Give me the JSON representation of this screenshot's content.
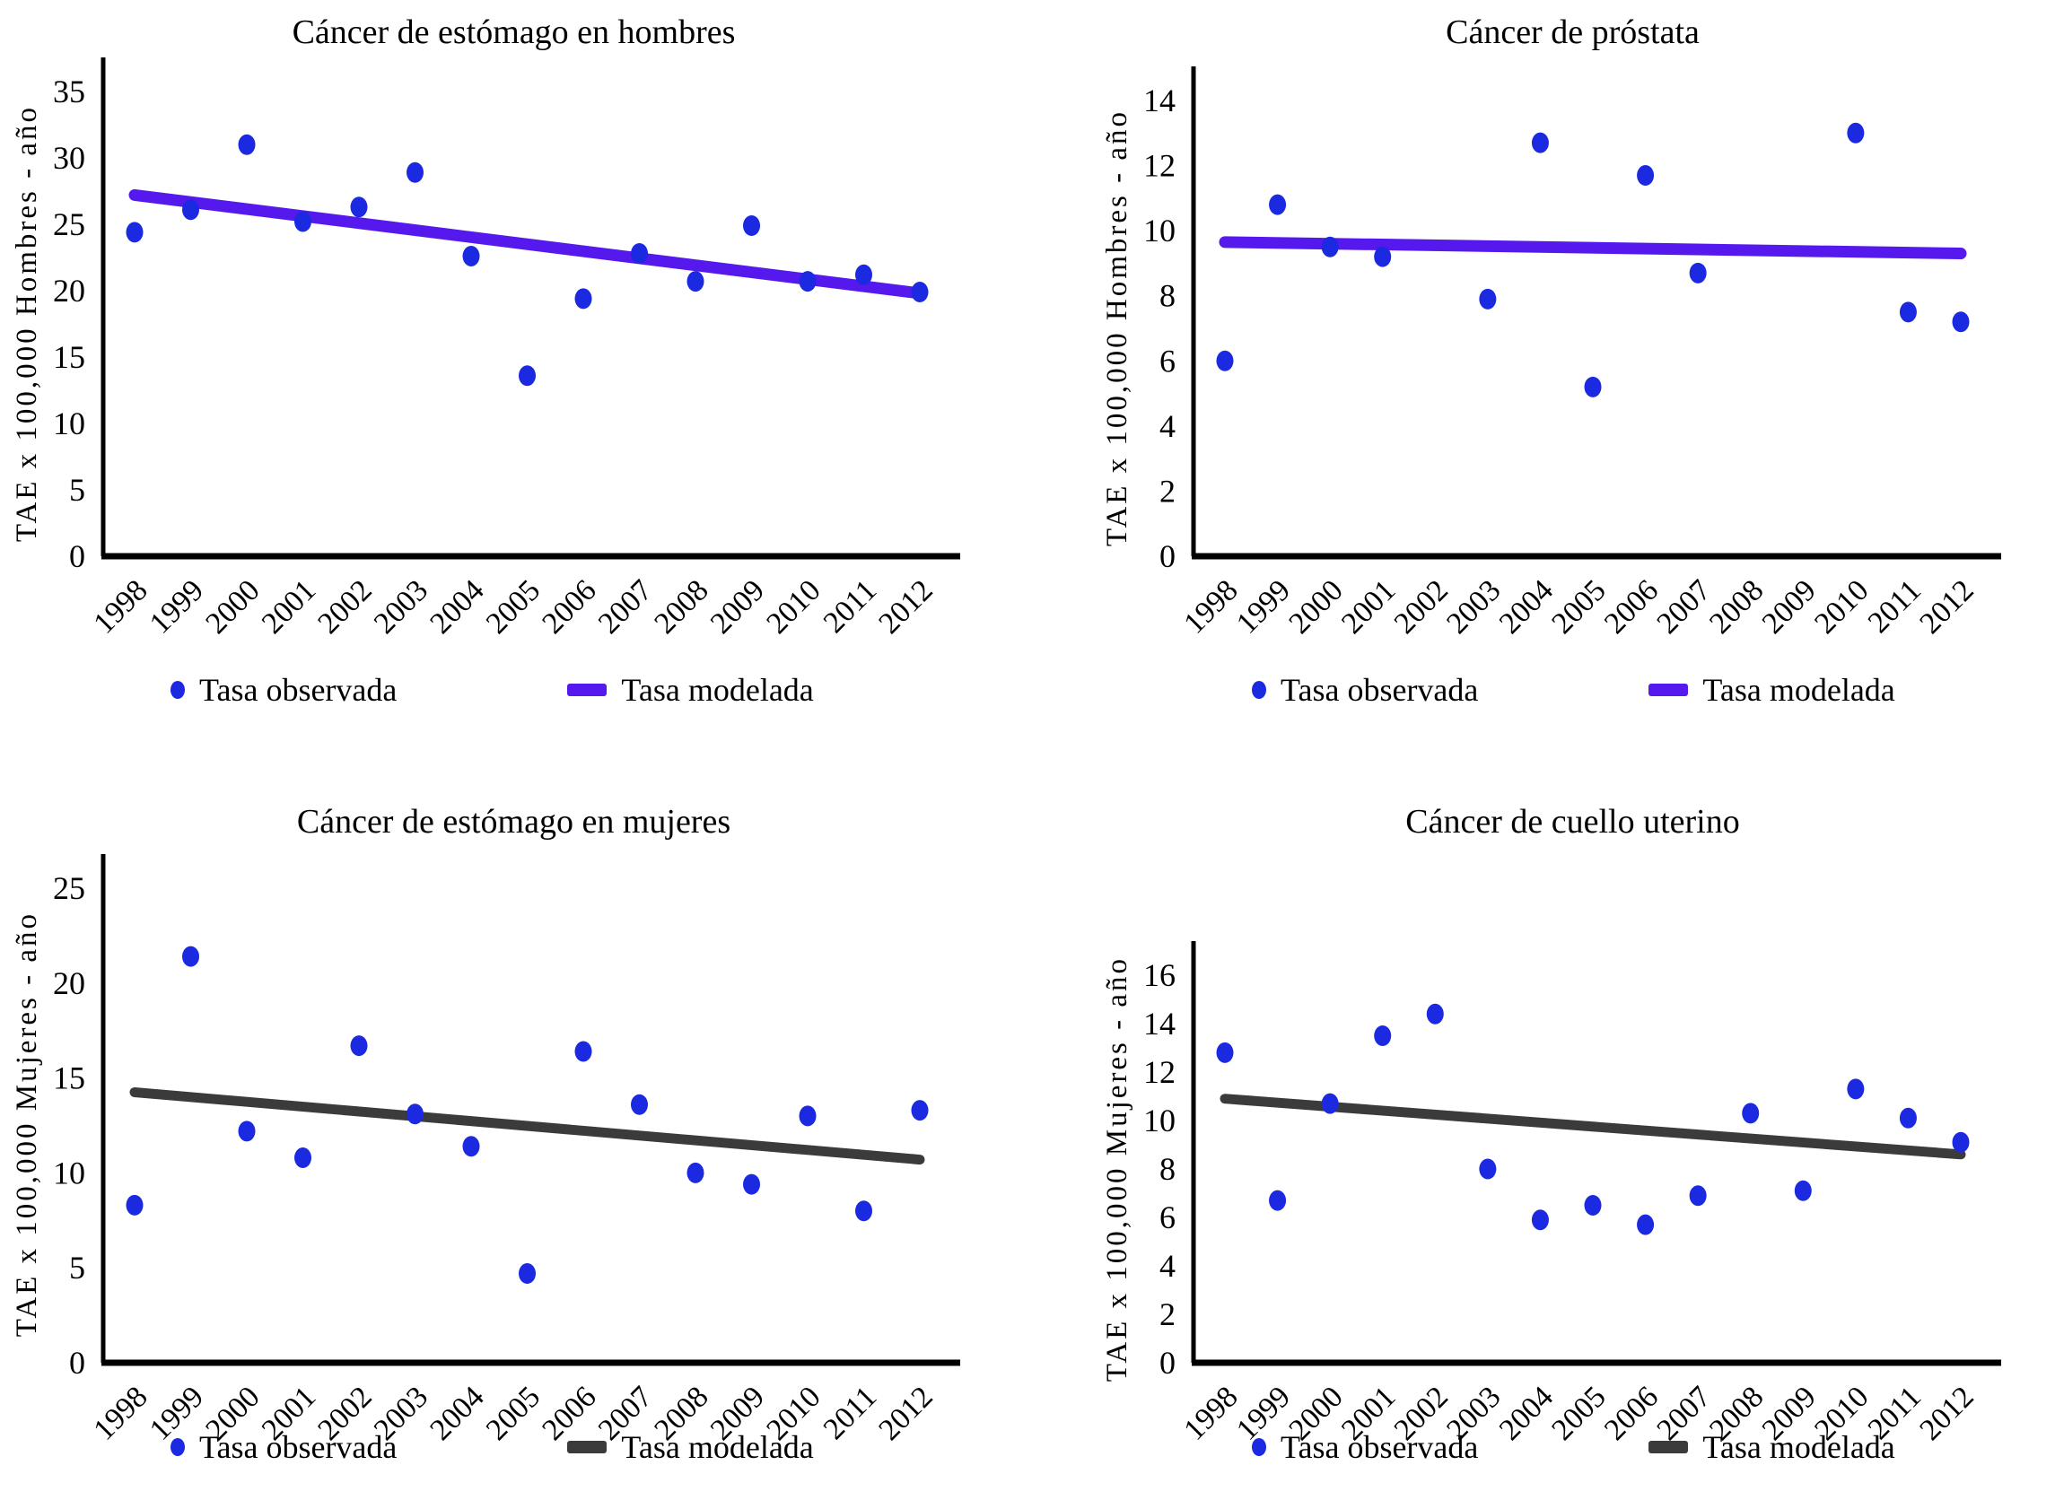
{
  "figure": {
    "background": "#ffffff"
  },
  "chart_data": [
    {
      "type": "scatter",
      "title": "Cáncer de estómago en hombres",
      "ylabel": "TAE x 100,000 Hombres - año",
      "xlabel": "",
      "x": [
        "1998",
        "1999",
        "2000",
        "2001",
        "2002",
        "2003",
        "2004",
        "2005",
        "2006",
        "2007",
        "2008",
        "2009",
        "2010",
        "2011",
        "2012"
      ],
      "ylim": [
        0,
        35
      ],
      "ytick_step": 5,
      "yticks": [
        0,
        5,
        10,
        15,
        20,
        25,
        30,
        35
      ],
      "grid": false,
      "legend_position": "bottom",
      "series": [
        {
          "name": "Tasa observada",
          "type": "scatter",
          "color": "#1b2ae0",
          "values": [
            24.4,
            26.1,
            31.0,
            25.2,
            26.3,
            28.9,
            22.6,
            13.6,
            19.4,
            22.8,
            20.7,
            24.9,
            20.7,
            21.2,
            19.9
          ]
        },
        {
          "name": "Tasa modelada",
          "type": "line",
          "color": "#5519ee",
          "trend_start": 27.2,
          "trend_end": 19.8
        }
      ]
    },
    {
      "type": "scatter",
      "title": "Cáncer de próstata",
      "ylabel": "TAE x 100,000 Hombres - año",
      "xlabel": "",
      "x": [
        "1998",
        "1999",
        "2000",
        "2001",
        "2002",
        "2003",
        "2004",
        "2005",
        "2006",
        "2007",
        "2008",
        "2009",
        "2010",
        "2011",
        "2012"
      ],
      "ylim": [
        0,
        14
      ],
      "ytick_step": 2,
      "yticks": [
        0,
        2,
        4,
        6,
        8,
        10,
        12,
        14
      ],
      "grid": false,
      "legend_position": "bottom",
      "series": [
        {
          "name": "Tasa observada",
          "type": "scatter",
          "color": "#1b2ae0",
          "values": [
            6.0,
            10.8,
            9.5,
            9.2,
            null,
            7.9,
            12.7,
            5.2,
            11.7,
            8.7,
            null,
            null,
            13.0,
            7.5,
            7.2
          ]
        },
        {
          "name": "Tasa modelada",
          "type": "line",
          "color": "#5519ee",
          "trend_start": 9.65,
          "trend_end": 9.3
        }
      ]
    },
    {
      "type": "scatter",
      "title": "Cáncer de estómago en mujeres",
      "ylabel": "TAE x 100,000 Mujeres - año",
      "xlabel": "",
      "x": [
        "1998",
        "1999",
        "2000",
        "2001",
        "2002",
        "2003",
        "2004",
        "2005",
        "2006",
        "2007",
        "2008",
        "2009",
        "2010",
        "2011",
        "2012"
      ],
      "ylim": [
        0,
        25
      ],
      "ytick_step": 5,
      "yticks": [
        0,
        5,
        10,
        15,
        20,
        25
      ],
      "grid": false,
      "legend_position": "bottom",
      "series": [
        {
          "name": "Tasa observada",
          "type": "scatter",
          "color": "#1b2ae0",
          "values": [
            8.3,
            21.4,
            12.2,
            10.8,
            16.7,
            13.1,
            11.4,
            4.7,
            16.4,
            13.6,
            10.0,
            9.4,
            13.0,
            8.0,
            13.3
          ]
        },
        {
          "name": "Tasa modelada",
          "type": "line",
          "color": "#3b3b3b",
          "trend_start": 14.25,
          "trend_end": 10.7
        }
      ]
    },
    {
      "type": "scatter",
      "title": "Cáncer de cuello uterino",
      "ylabel": "TAE x 100,000 Mujeres - año",
      "xlabel": "",
      "x": [
        "1998",
        "1999",
        "2000",
        "2001",
        "2002",
        "2003",
        "2004",
        "2005",
        "2006",
        "2007",
        "2008",
        "2009",
        "2010",
        "2011",
        "2012"
      ],
      "ylim": [
        0,
        16
      ],
      "ytick_step": 2,
      "yticks": [
        0,
        2,
        4,
        6,
        8,
        10,
        12,
        14,
        16
      ],
      "grid": false,
      "legend_position": "bottom",
      "series": [
        {
          "name": "Tasa observada",
          "type": "scatter",
          "color": "#1b2ae0",
          "values": [
            12.8,
            6.7,
            10.7,
            13.5,
            14.4,
            8.0,
            5.9,
            6.5,
            5.7,
            6.9,
            10.3,
            7.1,
            11.3,
            10.1,
            9.1
          ]
        },
        {
          "name": "Tasa modelada",
          "type": "line",
          "color": "#3b3b3b",
          "trend_start": 10.9,
          "trend_end": 8.6
        }
      ]
    }
  ]
}
